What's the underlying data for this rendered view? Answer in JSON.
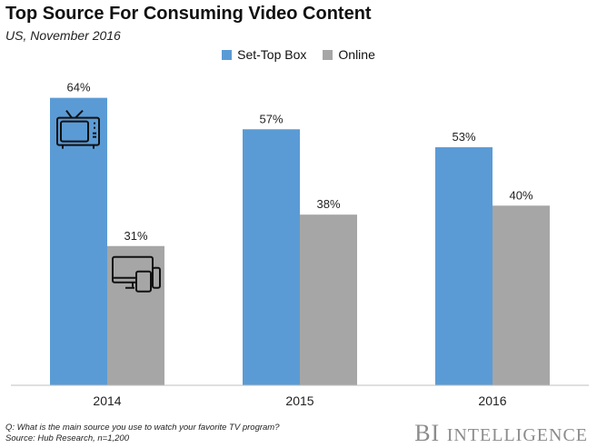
{
  "chart_data": {
    "type": "bar",
    "title": "Top Source For Consuming Video Content",
    "subtitle": "US, November 2016",
    "categories": [
      "2014",
      "2015",
      "2016"
    ],
    "series": [
      {
        "name": "Set-Top Box",
        "values": [
          64,
          57,
          53
        ],
        "labels": [
          "64%",
          "57%",
          "53%"
        ],
        "color": "#5b9bd5"
      },
      {
        "name": "Online",
        "values": [
          31,
          38,
          40
        ],
        "labels": [
          "31%",
          "38%",
          "40%"
        ],
        "color": "#a6a6a6"
      }
    ],
    "ylim": [
      0,
      70
    ],
    "grid": false,
    "legend_position": "top-center",
    "icons": [
      "tv-icon",
      "devices-icon"
    ]
  },
  "footnote": {
    "question": "Q: What is the main source you use to watch your favorite TV program?",
    "source": "Source: Hub Research, n=1,200"
  },
  "brand": {
    "first": "BI",
    "second": "Intelligence"
  }
}
